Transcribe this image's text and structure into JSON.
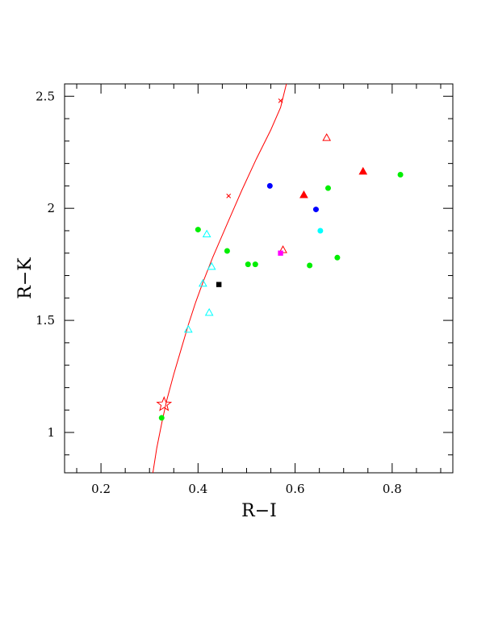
{
  "chart_data": {
    "type": "scatter",
    "xlabel": "R−I",
    "ylabel": "R−K",
    "xlim": [
      0.125,
      0.925
    ],
    "ylim": [
      0.82,
      2.555
    ],
    "x_ticks": [
      0.2,
      0.4,
      0.6,
      0.8
    ],
    "x_tick_labels": [
      "0.2",
      "0.4",
      "0.6",
      "0.8"
    ],
    "y_ticks": [
      1,
      1.5,
      2,
      2.5
    ],
    "y_tick_labels": [
      "1",
      "1.5",
      "2",
      "2.5"
    ],
    "grid": false,
    "curve": {
      "color": "#ff0000",
      "x": [
        0.307,
        0.315,
        0.325,
        0.335,
        0.35,
        0.365,
        0.38,
        0.395,
        0.41,
        0.43,
        0.46,
        0.49,
        0.52,
        0.55,
        0.57,
        0.582
      ],
      "y": [
        0.82,
        0.93,
        1.04,
        1.14,
        1.26,
        1.37,
        1.48,
        1.58,
        1.67,
        1.78,
        1.93,
        2.08,
        2.22,
        2.35,
        2.45,
        2.555
      ],
      "markers": [
        {
          "x": 0.463,
          "y": 2.055
        },
        {
          "x": 0.57,
          "y": 2.48
        }
      ]
    },
    "star": {
      "x": 0.33,
      "y": 1.125,
      "color": "#ff0000"
    },
    "points": [
      {
        "x": 0.325,
        "y": 1.065,
        "marker": "circle",
        "color": "#00ee00"
      },
      {
        "x": 0.4,
        "y": 1.905,
        "marker": "circle",
        "color": "#00ee00"
      },
      {
        "x": 0.46,
        "y": 1.81,
        "marker": "circle",
        "color": "#00ee00"
      },
      {
        "x": 0.503,
        "y": 1.75,
        "marker": "circle",
        "color": "#00ee00"
      },
      {
        "x": 0.518,
        "y": 1.75,
        "marker": "circle",
        "color": "#00ee00"
      },
      {
        "x": 0.63,
        "y": 1.745,
        "marker": "circle",
        "color": "#00ee00"
      },
      {
        "x": 0.668,
        "y": 2.09,
        "marker": "circle",
        "color": "#00ee00"
      },
      {
        "x": 0.687,
        "y": 1.78,
        "marker": "circle",
        "color": "#00ee00"
      },
      {
        "x": 0.817,
        "y": 2.15,
        "marker": "circle",
        "color": "#00ee00"
      },
      {
        "x": 0.548,
        "y": 2.1,
        "marker": "circle",
        "color": "#0000ff"
      },
      {
        "x": 0.643,
        "y": 1.995,
        "marker": "circle",
        "color": "#0000ff"
      },
      {
        "x": 0.652,
        "y": 1.9,
        "marker": "circle",
        "color": "#00ffff"
      },
      {
        "x": 0.38,
        "y": 1.46,
        "marker": "open-triangle",
        "color": "#00ffff"
      },
      {
        "x": 0.41,
        "y": 1.665,
        "marker": "open-triangle",
        "color": "#00ffff"
      },
      {
        "x": 0.418,
        "y": 1.885,
        "marker": "open-triangle",
        "color": "#00ffff"
      },
      {
        "x": 0.423,
        "y": 1.535,
        "marker": "open-triangle",
        "color": "#00ffff"
      },
      {
        "x": 0.428,
        "y": 1.74,
        "marker": "open-triangle",
        "color": "#00ffff"
      },
      {
        "x": 0.575,
        "y": 1.815,
        "marker": "open-triangle",
        "color": "#ff0000"
      },
      {
        "x": 0.665,
        "y": 2.315,
        "marker": "open-triangle",
        "color": "#ff0000"
      },
      {
        "x": 0.618,
        "y": 2.06,
        "marker": "filled-triangle",
        "color": "#ff0000"
      },
      {
        "x": 0.74,
        "y": 2.165,
        "marker": "filled-triangle",
        "color": "#ff0000"
      },
      {
        "x": 0.443,
        "y": 1.66,
        "marker": "square",
        "color": "#000000"
      },
      {
        "x": 0.57,
        "y": 1.8,
        "marker": "square",
        "color": "#ff00ff"
      }
    ]
  }
}
